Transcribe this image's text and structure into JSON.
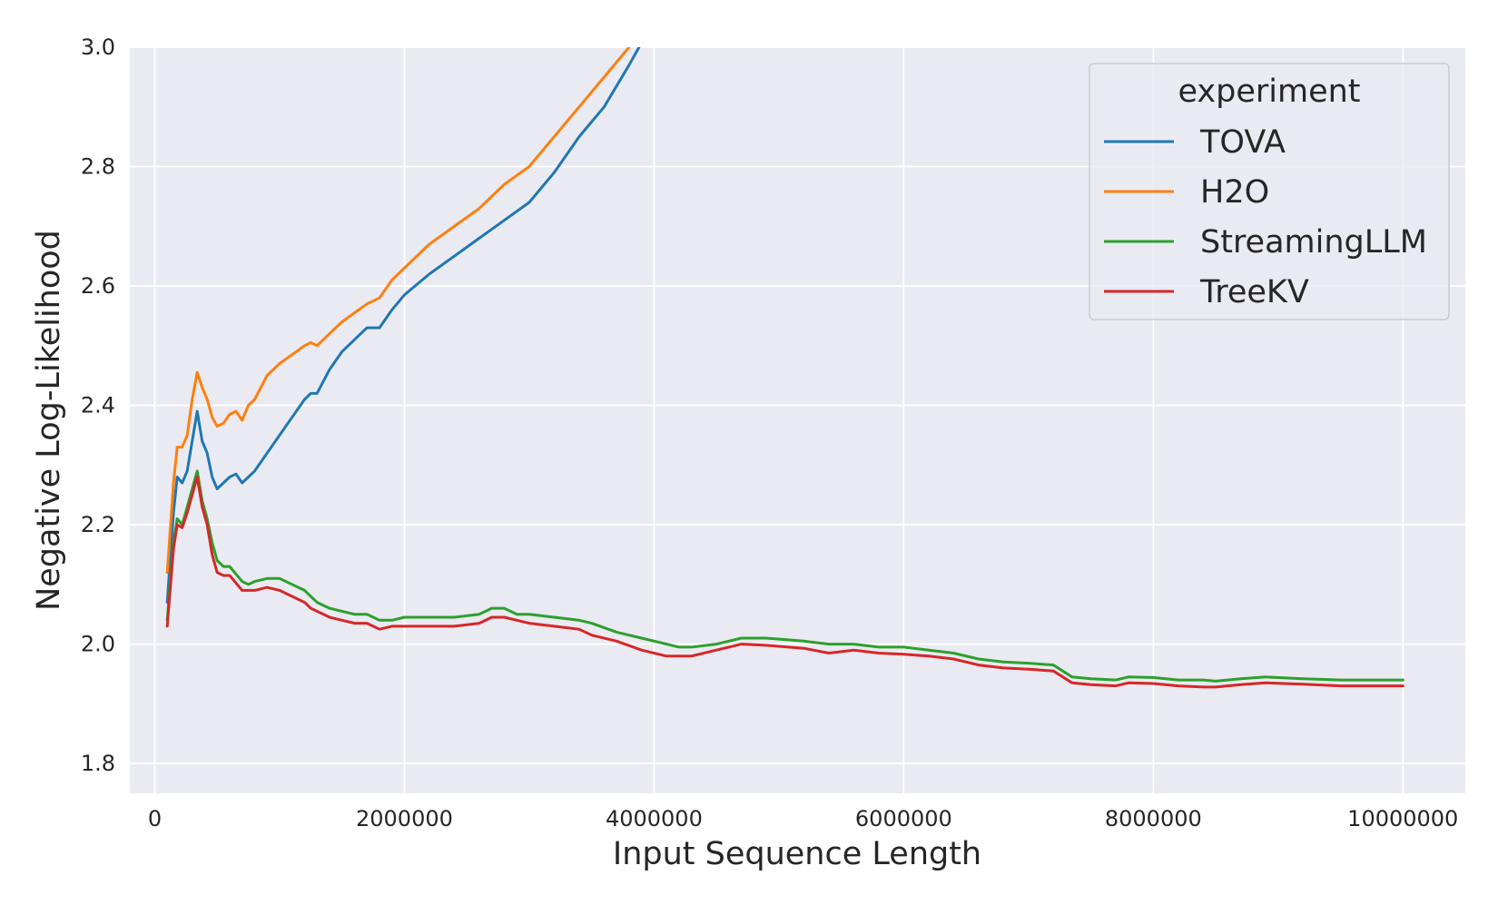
{
  "chart_data": {
    "type": "line",
    "xlabel": "Input Sequence Length",
    "ylabel": "Negative Log-Likelihood",
    "xlim": [
      -200000,
      10500000
    ],
    "ylim": [
      1.75,
      3.0
    ],
    "xticks": [
      0,
      2000000,
      4000000,
      6000000,
      8000000,
      10000000
    ],
    "xtick_labels": [
      "0",
      "2000000",
      "4000000",
      "6000000",
      "8000000",
      "10000000"
    ],
    "yticks": [
      1.8,
      2.0,
      2.2,
      2.4,
      2.6,
      2.8,
      3.0
    ],
    "ytick_labels": [
      "1.8",
      "2.0",
      "2.2",
      "2.4",
      "2.6",
      "2.8",
      "3.0"
    ],
    "grid": true,
    "legend": {
      "title": "experiment",
      "placement": "top-right"
    },
    "series": [
      {
        "name": "TOVA",
        "color": "#1f77b4",
        "x": [
          100000,
          150000,
          180000,
          220000,
          260000,
          300000,
          340000,
          380000,
          420000,
          460000,
          500000,
          550000,
          600000,
          650000,
          700000,
          750000,
          800000,
          900000,
          1000000,
          1100000,
          1200000,
          1250000,
          1300000,
          1400000,
          1500000,
          1600000,
          1700000,
          1800000,
          1900000,
          2000000,
          2200000,
          2400000,
          2600000,
          2800000,
          3000000,
          3200000,
          3400000,
          3600000,
          3800000,
          3880000
        ],
        "y": [
          2.07,
          2.22,
          2.28,
          2.27,
          2.29,
          2.34,
          2.39,
          2.34,
          2.32,
          2.28,
          2.26,
          2.27,
          2.28,
          2.285,
          2.27,
          2.28,
          2.29,
          2.32,
          2.35,
          2.38,
          2.41,
          2.42,
          2.42,
          2.46,
          2.49,
          2.51,
          2.53,
          2.53,
          2.56,
          2.585,
          2.62,
          2.65,
          2.68,
          2.71,
          2.74,
          2.79,
          2.85,
          2.9,
          2.97,
          3.0
        ]
      },
      {
        "name": "H2O",
        "color": "#ff7f0e",
        "x": [
          100000,
          150000,
          180000,
          220000,
          260000,
          300000,
          340000,
          380000,
          420000,
          460000,
          500000,
          550000,
          600000,
          650000,
          700000,
          750000,
          800000,
          900000,
          1000000,
          1100000,
          1200000,
          1250000,
          1300000,
          1400000,
          1500000,
          1600000,
          1700000,
          1800000,
          1900000,
          2000000,
          2200000,
          2400000,
          2600000,
          2800000,
          3000000,
          3200000,
          3400000,
          3600000,
          3800000
        ],
        "y": [
          2.12,
          2.27,
          2.33,
          2.33,
          2.35,
          2.41,
          2.455,
          2.43,
          2.41,
          2.38,
          2.365,
          2.37,
          2.385,
          2.39,
          2.375,
          2.4,
          2.41,
          2.45,
          2.47,
          2.485,
          2.5,
          2.505,
          2.5,
          2.52,
          2.54,
          2.555,
          2.57,
          2.58,
          2.61,
          2.63,
          2.67,
          2.7,
          2.73,
          2.77,
          2.8,
          2.85,
          2.9,
          2.95,
          3.0
        ]
      },
      {
        "name": "StreamingLLM",
        "color": "#2ca02c",
        "x": [
          100000,
          150000,
          180000,
          220000,
          260000,
          300000,
          340000,
          380000,
          420000,
          460000,
          500000,
          550000,
          600000,
          700000,
          750000,
          800000,
          900000,
          1000000,
          1100000,
          1200000,
          1250000,
          1300000,
          1400000,
          1500000,
          1600000,
          1700000,
          1750000,
          1800000,
          1900000,
          2000000,
          2200000,
          2400000,
          2600000,
          2700000,
          2800000,
          2900000,
          3000000,
          3200000,
          3400000,
          3500000,
          3700000,
          3900000,
          4100000,
          4200000,
          4300000,
          4500000,
          4700000,
          4900000,
          5200000,
          5400000,
          5600000,
          5800000,
          6000000,
          6200000,
          6400000,
          6600000,
          6800000,
          7000000,
          7200000,
          7350000,
          7500000,
          7700000,
          7800000,
          8000000,
          8200000,
          8400000,
          8500000,
          8700000,
          8900000,
          9200000,
          9500000,
          9800000,
          10000000
        ],
        "y": [
          2.04,
          2.17,
          2.21,
          2.2,
          2.23,
          2.26,
          2.29,
          2.24,
          2.21,
          2.17,
          2.14,
          2.13,
          2.13,
          2.105,
          2.1,
          2.105,
          2.11,
          2.11,
          2.1,
          2.09,
          2.08,
          2.07,
          2.06,
          2.055,
          2.05,
          2.05,
          2.045,
          2.04,
          2.04,
          2.045,
          2.045,
          2.045,
          2.05,
          2.06,
          2.06,
          2.05,
          2.05,
          2.045,
          2.04,
          2.035,
          2.02,
          2.01,
          2.0,
          1.995,
          1.995,
          2.0,
          2.01,
          2.01,
          2.005,
          2.0,
          2.0,
          1.995,
          1.995,
          1.99,
          1.985,
          1.975,
          1.97,
          1.968,
          1.965,
          1.945,
          1.942,
          1.94,
          1.945,
          1.944,
          1.94,
          1.94,
          1.938,
          1.942,
          1.945,
          1.942,
          1.94,
          1.94,
          1.94
        ]
      },
      {
        "name": "TreeKV",
        "color": "#d62728",
        "x": [
          100000,
          150000,
          180000,
          220000,
          260000,
          300000,
          340000,
          380000,
          420000,
          460000,
          500000,
          550000,
          600000,
          700000,
          750000,
          800000,
          900000,
          1000000,
          1100000,
          1200000,
          1250000,
          1300000,
          1400000,
          1500000,
          1600000,
          1700000,
          1750000,
          1800000,
          1900000,
          2000000,
          2200000,
          2400000,
          2600000,
          2700000,
          2800000,
          2900000,
          3000000,
          3200000,
          3400000,
          3500000,
          3700000,
          3900000,
          4100000,
          4200000,
          4300000,
          4500000,
          4700000,
          4900000,
          5200000,
          5400000,
          5600000,
          5800000,
          6000000,
          6200000,
          6400000,
          6600000,
          6800000,
          7000000,
          7200000,
          7350000,
          7500000,
          7700000,
          7800000,
          8000000,
          8200000,
          8400000,
          8500000,
          8700000,
          8900000,
          9200000,
          9500000,
          9800000,
          10000000
        ],
        "y": [
          2.03,
          2.16,
          2.2,
          2.195,
          2.22,
          2.25,
          2.28,
          2.23,
          2.2,
          2.15,
          2.12,
          2.115,
          2.115,
          2.09,
          2.09,
          2.09,
          2.095,
          2.09,
          2.08,
          2.07,
          2.06,
          2.055,
          2.045,
          2.04,
          2.035,
          2.035,
          2.03,
          2.025,
          2.03,
          2.03,
          2.03,
          2.03,
          2.035,
          2.045,
          2.045,
          2.04,
          2.035,
          2.03,
          2.025,
          2.015,
          2.005,
          1.99,
          1.98,
          1.98,
          1.98,
          1.99,
          2.0,
          1.998,
          1.993,
          1.985,
          1.99,
          1.985,
          1.983,
          1.98,
          1.975,
          1.965,
          1.96,
          1.958,
          1.955,
          1.935,
          1.932,
          1.93,
          1.935,
          1.934,
          1.93,
          1.928,
          1.928,
          1.932,
          1.935,
          1.933,
          1.93,
          1.93,
          1.93
        ]
      }
    ]
  }
}
